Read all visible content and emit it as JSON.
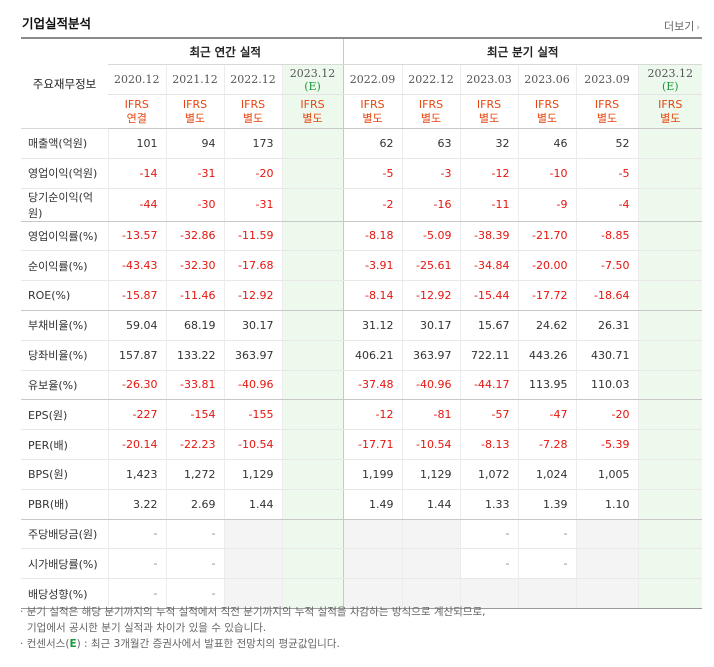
{
  "section_title": "기업실적분석",
  "more_link": "더보기",
  "more_icon": "chevron-right-icon",
  "header": {
    "item_label": "주요재무정보",
    "annual_group": "최근 연간 실적",
    "quarter_group": "최근 분기 실적"
  },
  "periods": [
    {
      "label": "2020.12",
      "ifrs1": "IFRS",
      "ifrs2": "연결"
    },
    {
      "label": "2021.12",
      "ifrs1": "IFRS",
      "ifrs2": "별도"
    },
    {
      "label": "2022.12",
      "ifrs1": "IFRS",
      "ifrs2": "별도"
    },
    {
      "label": "2023.12",
      "est": "(E)",
      "ifrs1": "IFRS",
      "ifrs2": "별도"
    },
    {
      "label": "2022.09",
      "ifrs1": "IFRS",
      "ifrs2": "별도"
    },
    {
      "label": "2022.12",
      "ifrs1": "IFRS",
      "ifrs2": "별도"
    },
    {
      "label": "2023.03",
      "ifrs1": "IFRS",
      "ifrs2": "별도"
    },
    {
      "label": "2023.06",
      "ifrs1": "IFRS",
      "ifrs2": "별도"
    },
    {
      "label": "2023.09",
      "ifrs1": "IFRS",
      "ifrs2": "별도"
    },
    {
      "label": "2023.12",
      "est": "(E)",
      "ifrs1": "IFRS",
      "ifrs2": "별도"
    }
  ],
  "rows": [
    {
      "label": "매출액(억원)",
      "values": [
        "101",
        "94",
        "173",
        "",
        "62",
        "63",
        "32",
        "46",
        "52",
        ""
      ]
    },
    {
      "label": "영업이익(억원)",
      "values": [
        "-14",
        "-31",
        "-20",
        "",
        "-5",
        "-3",
        "-12",
        "-10",
        "-5",
        ""
      ]
    },
    {
      "label": "당기순이익(억원)",
      "values": [
        "-44",
        "-30",
        "-31",
        "",
        "-2",
        "-16",
        "-11",
        "-9",
        "-4",
        ""
      ]
    },
    {
      "label": "영업이익률(%)",
      "values": [
        "-13.57",
        "-32.86",
        "-11.59",
        "",
        "-8.18",
        "-5.09",
        "-38.39",
        "-21.70",
        "-8.85",
        ""
      ]
    },
    {
      "label": "순이익률(%)",
      "values": [
        "-43.43",
        "-32.30",
        "-17.68",
        "",
        "-3.91",
        "-25.61",
        "-34.84",
        "-20.00",
        "-7.50",
        ""
      ]
    },
    {
      "label": "ROE(%)",
      "values": [
        "-15.87",
        "-11.46",
        "-12.92",
        "",
        "-8.14",
        "-12.92",
        "-15.44",
        "-17.72",
        "-18.64",
        ""
      ]
    },
    {
      "label": "부채비율(%)",
      "values": [
        "59.04",
        "68.19",
        "30.17",
        "",
        "31.12",
        "30.17",
        "15.67",
        "24.62",
        "26.31",
        ""
      ]
    },
    {
      "label": "당좌비율(%)",
      "values": [
        "157.87",
        "133.22",
        "363.97",
        "",
        "406.21",
        "363.97",
        "722.11",
        "443.26",
        "430.71",
        ""
      ]
    },
    {
      "label": "유보율(%)",
      "values": [
        "-26.30",
        "-33.81",
        "-40.96",
        "",
        "-37.48",
        "-40.96",
        "-44.17",
        "113.95",
        "110.03",
        ""
      ]
    },
    {
      "label": "EPS(원)",
      "values": [
        "-227",
        "-154",
        "-155",
        "",
        "-12",
        "-81",
        "-57",
        "-47",
        "-20",
        ""
      ]
    },
    {
      "label": "PER(배)",
      "values": [
        "-20.14",
        "-22.23",
        "-10.54",
        "",
        "-17.71",
        "-10.54",
        "-8.13",
        "-7.28",
        "-5.39",
        ""
      ]
    },
    {
      "label": "BPS(원)",
      "values": [
        "1,423",
        "1,272",
        "1,129",
        "",
        "1,199",
        "1,129",
        "1,072",
        "1,024",
        "1,005",
        ""
      ]
    },
    {
      "label": "PBR(배)",
      "values": [
        "3.22",
        "2.69",
        "1.44",
        "",
        "1.49",
        "1.44",
        "1.33",
        "1.39",
        "1.10",
        ""
      ]
    },
    {
      "label": "주당배당금(원)",
      "values": [
        "-",
        "-",
        "",
        "",
        "",
        "",
        "-",
        "-",
        "",
        ""
      ]
    },
    {
      "label": "시가배당률(%)",
      "values": [
        "-",
        "-",
        "",
        "",
        "",
        "",
        "-",
        "-",
        "",
        ""
      ]
    },
    {
      "label": "배당성향(%)",
      "values": [
        "-",
        "-",
        "",
        "",
        "",
        "",
        "",
        "",
        "",
        ""
      ]
    }
  ],
  "notes": {
    "line1": "분기 실적은 해당 분기까지의 누적 실적에서 직전 분기까지의 누적 실적을 차감하는 방식으로 계산되므로,",
    "line2": "기업에서 공시한 분기 실적과 차이가 있을 수 있습니다.",
    "line3_prefix": "컨센서스(",
    "line3_mark": "E",
    "line3_suffix": ") : 최근 3개월간 증권사에서 발표한 전망치의 평균값입니다."
  }
}
